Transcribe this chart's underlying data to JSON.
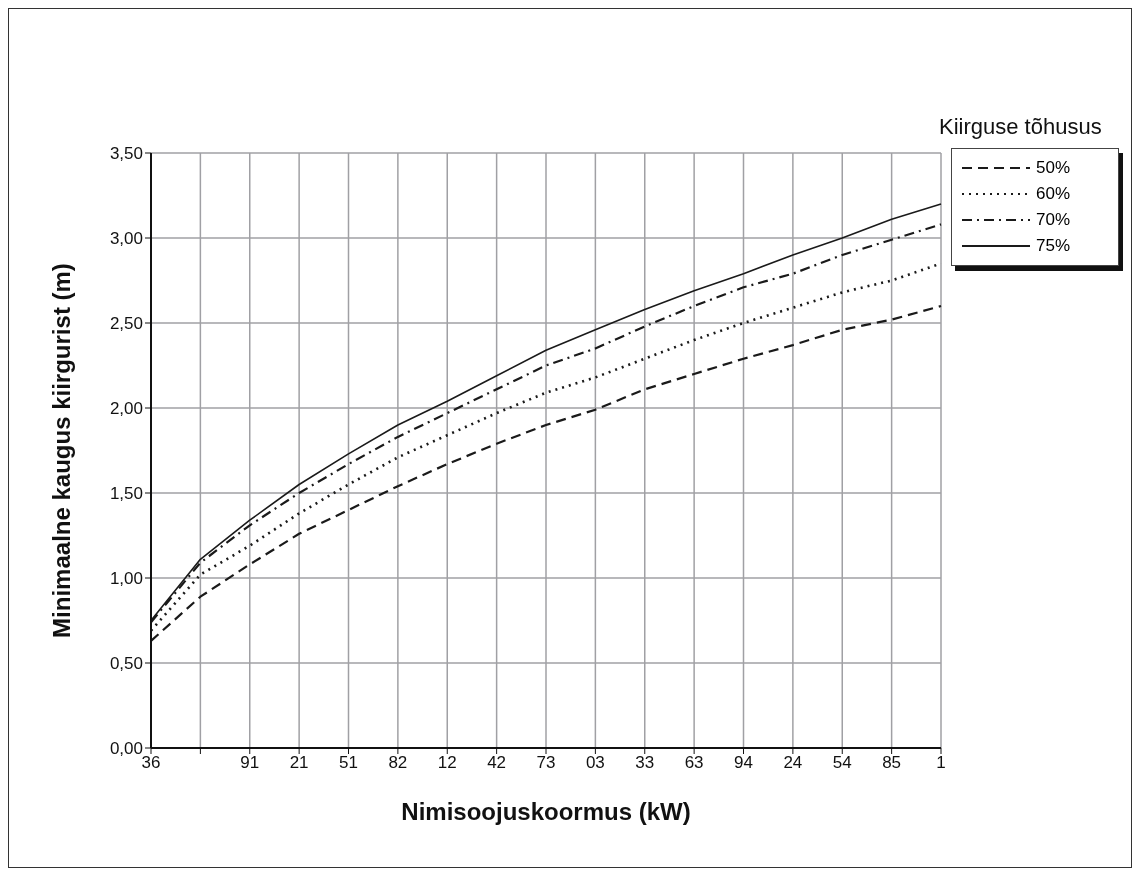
{
  "chart_data": {
    "type": "line",
    "xlabel": "Nimisoojuskoormus (kW)",
    "ylabel": "Minimaalne kaugus kiirgurist (m)",
    "legend_title": "Kiirguse tõhusus",
    "categories": [
      "36",
      null,
      "91",
      "21",
      "51",
      "82",
      "12",
      "42",
      "73",
      "03",
      "33",
      "63",
      "94",
      "24",
      "54",
      "85",
      "1"
    ],
    "series": [
      {
        "name": "50%",
        "color": "#1a1a1a",
        "line_style": "dashed",
        "values": [
          0.63,
          0.89,
          1.08,
          1.26,
          1.4,
          1.54,
          1.67,
          1.79,
          1.9,
          1.99,
          2.11,
          2.2,
          2.29,
          2.37,
          2.46,
          2.52,
          2.6
        ]
      },
      {
        "name": "60%",
        "color": "#1a1a1a",
        "line_style": "dotted",
        "values": [
          0.69,
          1.02,
          1.19,
          1.38,
          1.55,
          1.71,
          1.84,
          1.97,
          2.09,
          2.18,
          2.29,
          2.4,
          2.5,
          2.59,
          2.68,
          2.75,
          2.85
        ]
      },
      {
        "name": "70%",
        "color": "#1a1a1a",
        "line_style": "dashdot",
        "values": [
          0.74,
          1.09,
          1.31,
          1.5,
          1.67,
          1.83,
          1.97,
          2.11,
          2.25,
          2.35,
          2.48,
          2.6,
          2.71,
          2.79,
          2.9,
          2.99,
          3.08
        ]
      },
      {
        "name": "75%",
        "color": "#1a1a1a",
        "line_style": "solid",
        "values": [
          0.75,
          1.11,
          1.34,
          1.55,
          1.73,
          1.9,
          2.04,
          2.19,
          2.34,
          2.46,
          2.58,
          2.69,
          2.79,
          2.9,
          3.0,
          3.11,
          3.2
        ]
      }
    ],
    "ylim": [
      0,
      3.5
    ],
    "yticks": [
      {
        "value": 0,
        "label": "0,00"
      },
      {
        "value": 0.5,
        "label": "0,50"
      },
      {
        "value": 1,
        "label": "1,00"
      },
      {
        "value": 1.5,
        "label": "1,50"
      },
      {
        "value": 2,
        "label": "2,00"
      },
      {
        "value": 2.5,
        "label": "2,50"
      },
      {
        "value": 3,
        "label": "3,00"
      },
      {
        "value": 3.5,
        "label": "3,50"
      }
    ],
    "grid": true,
    "legend": "top right",
    "marker": "none"
  }
}
